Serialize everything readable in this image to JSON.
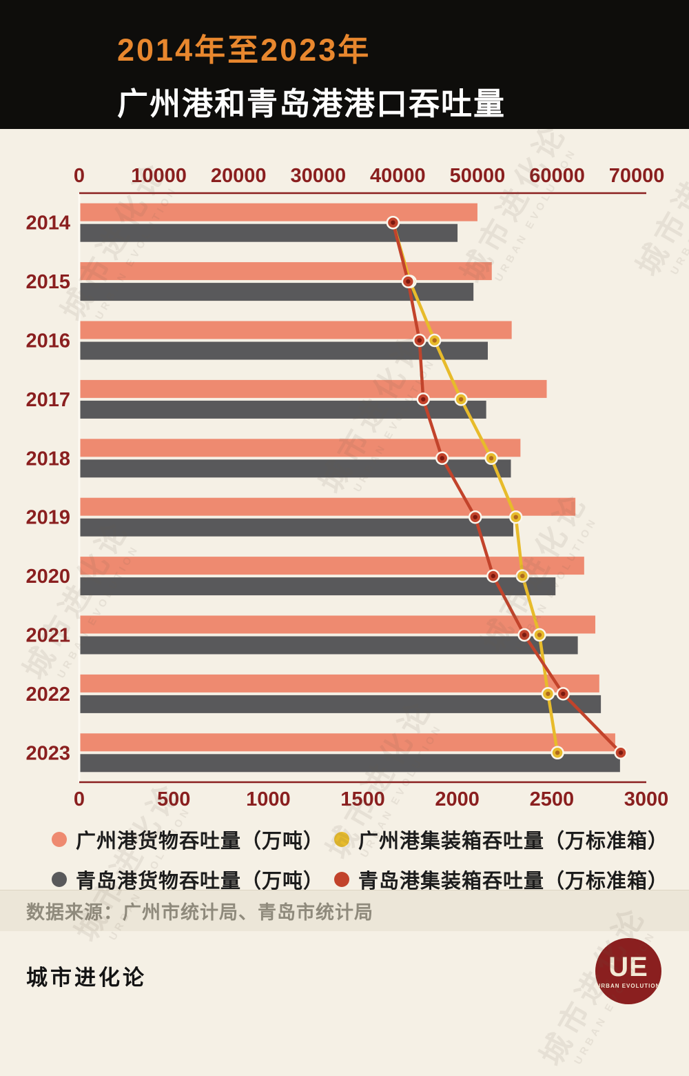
{
  "header": {
    "title_line1": "2014年至2023年",
    "title_line2": "广州港和青岛港港口吞吐量"
  },
  "chart_data": {
    "type": "bar",
    "subtype": "horizontal-grouped-bars-with-line-overlay",
    "title": "广州港和青岛港港口吞吐量",
    "subtitle": "2014年至2023年",
    "categories": [
      "2014",
      "2015",
      "2016",
      "2017",
      "2018",
      "2019",
      "2020",
      "2021",
      "2022",
      "2023"
    ],
    "bar_axis": {
      "position": "top",
      "unit": "万吨",
      "ticks": [
        0,
        10000,
        20000,
        30000,
        40000,
        50000,
        60000,
        70000
      ],
      "max": 71200
    },
    "line_axis": {
      "position": "bottom",
      "unit": "万标准箱",
      "ticks": [
        0,
        500,
        1000,
        1500,
        2000,
        2500,
        3000
      ],
      "max": 3000
    },
    "bar_series": [
      {
        "key": "guangzhou-cargo",
        "name": "广州港货物吞吐量（万吨）",
        "color": "#ee8a70",
        "values": [
          50000,
          51800,
          54300,
          58700,
          55400,
          62300,
          63400,
          64800,
          65300,
          67300
        ]
      },
      {
        "key": "qingdao-cargo",
        "name": "青岛港货物吞吐量（万吨）",
        "color": "#59595b",
        "values": [
          47500,
          49500,
          51300,
          51100,
          54200,
          54500,
          59800,
          62600,
          65500,
          67900
        ]
      }
    ],
    "line_series": [
      {
        "key": "guangzhou-containers",
        "name": "广州港集装箱吞吐量（万标准箱）",
        "color": "#e7bb2b",
        "marker_center": "#b06a1e",
        "values": [
          1660,
          1750,
          1880,
          2020,
          2180,
          2310,
          2345,
          2435,
          2480,
          2530
        ]
      },
      {
        "key": "qingdao-containers",
        "name": "青岛港集装箱吞吐量（万标准箱）",
        "color": "#c2432b",
        "marker_center": "#7c1a10",
        "values": [
          1660,
          1740,
          1800,
          1820,
          1920,
          2095,
          2190,
          2355,
          2560,
          2865
        ]
      }
    ],
    "axis_text_color": "#8a1f1f",
    "axis_line_color": "#8a1f1f",
    "marker_ring_color": "#faf6ec",
    "grid": false,
    "legend_position": "bottom"
  },
  "legend": {
    "items": [
      {
        "key": "guangzhou-cargo",
        "label": "广州港货物吞吐量（万吨）",
        "color": "#ee8a70"
      },
      {
        "key": "guangzhou-containers",
        "label": "广州港集装箱吞吐量（万标准箱）",
        "color": "#e7bb2b"
      },
      {
        "key": "qingdao-cargo",
        "label": "青岛港货物吞吐量（万吨）",
        "color": "#59595b"
      },
      {
        "key": "qingdao-containers",
        "label": "青岛港集装箱吞吐量（万标准箱）",
        "color": "#c2432b"
      }
    ]
  },
  "source": {
    "text": "数据来源：广州市统计局、青岛市统计局"
  },
  "footer": {
    "brand": "城市进化论",
    "logo_text": "UE",
    "logo_sub": "URBAN EVOLUTION"
  },
  "watermark": {
    "text_cn": "城市进化论",
    "text_en": "URBAN EVOLUTION"
  }
}
